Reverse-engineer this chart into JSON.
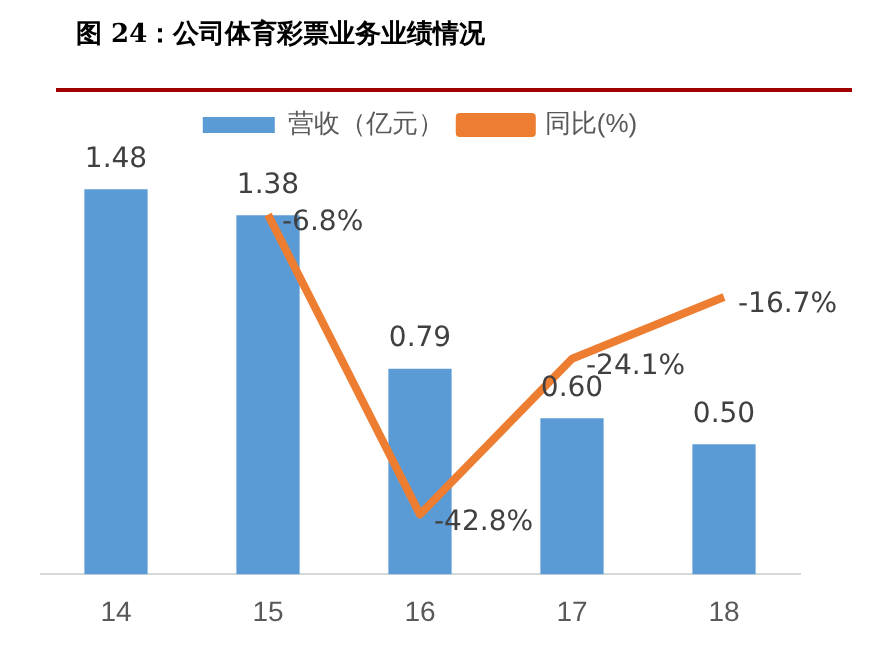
{
  "chart_data": {
    "type": "bar",
    "title": "图 24：公司体育彩票业务业绩情况",
    "categories": [
      "14",
      "15",
      "16",
      "17",
      "18"
    ],
    "series": [
      {
        "name": "营收（亿元）",
        "color": "#5b9bd5",
        "values": [
          1.48,
          1.38,
          0.79,
          0.6,
          0.5
        ],
        "value_labels": [
          "1.48",
          "1.38",
          "0.79",
          "0.60",
          "0.50"
        ]
      },
      {
        "name": "同比(%)",
        "type": "line",
        "axis": "y2",
        "color": "#ed7d31",
        "values": [
          null,
          -6.8,
          -42.8,
          -24.1,
          -16.7
        ],
        "value_labels": [
          null,
          "-6.8%",
          "-42.8%",
          "-24.1%",
          "-16.7%"
        ]
      }
    ],
    "tick_labels": "x",
    "legend": "top",
    "marker": "none"
  }
}
